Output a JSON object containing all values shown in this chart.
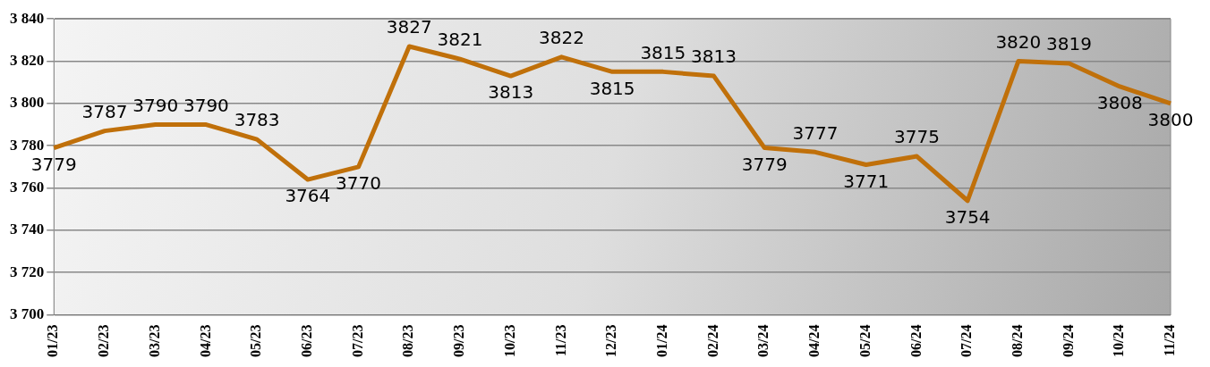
{
  "chart_data": {
    "type": "line",
    "categories": [
      "01/23",
      "02/23",
      "03/23",
      "04/23",
      "05/23",
      "06/23",
      "07/23",
      "08/23",
      "09/23",
      "10/23",
      "11/23",
      "12/23",
      "01/24",
      "02/24",
      "03/24",
      "04/24",
      "05/24",
      "06/24",
      "07/24",
      "08/24",
      "09/24",
      "10/24",
      "11/24"
    ],
    "series": [
      {
        "color": "#c0700a",
        "values": [
          3779,
          3787,
          3790,
          3790,
          3783,
          3764,
          3770,
          3827,
          3821,
          3813,
          3822,
          3815,
          3815,
          3813,
          3779,
          3777,
          3771,
          3775,
          3754,
          3820,
          3819,
          3808,
          3800
        ]
      }
    ],
    "ylim": [
      3700,
      3840
    ],
    "yticks": [
      {
        "value": 3700,
        "label": "3 700"
      },
      {
        "value": 3720,
        "label": "3 720"
      },
      {
        "value": 3740,
        "label": "3 740"
      },
      {
        "value": 3760,
        "label": "3 760"
      },
      {
        "value": 3780,
        "label": "3 780"
      },
      {
        "value": 3800,
        "label": "3 800"
      },
      {
        "value": 3820,
        "label": "3 820"
      },
      {
        "value": 3840,
        "label": "3 840"
      }
    ],
    "grid": "y",
    "legend": false,
    "marker": "none",
    "line_style": "solid",
    "data_labels": true
  }
}
